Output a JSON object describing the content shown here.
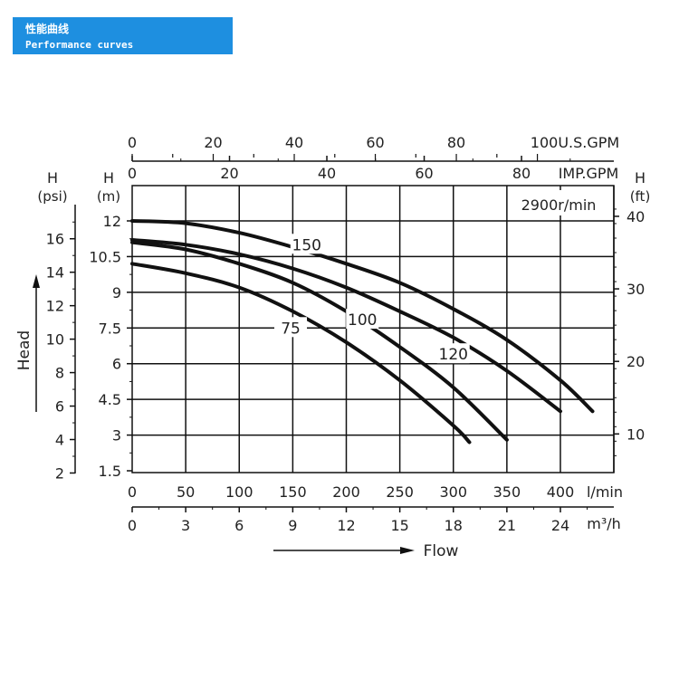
{
  "header": {
    "title_cn": "性能曲线",
    "title_en": "Performance curves"
  },
  "colors": {
    "banner": "#1e8fe0",
    "curve": "#111111",
    "grid": "#111111"
  },
  "chart_data": {
    "type": "line",
    "title": "",
    "speed_label": "2900r/min",
    "xlim": [
      0,
      450
    ],
    "ylim": [
      1.5,
      13.5
    ],
    "grid": true,
    "x_axes": [
      {
        "id": "lmin",
        "position": "bottom",
        "unit": "l/min",
        "ticks": [
          "0",
          "50",
          "100",
          "150",
          "200",
          "250",
          "300",
          "350",
          "400"
        ],
        "tick_values": [
          0,
          50,
          100,
          150,
          200,
          250,
          300,
          350,
          400
        ]
      },
      {
        "id": "m3h",
        "position": "bottom",
        "unit": "m³/h",
        "ticks": [
          "0",
          "3",
          "6",
          "9",
          "12",
          "15",
          "18",
          "21",
          "24"
        ],
        "tick_values": [
          0,
          3,
          6,
          9,
          12,
          15,
          18,
          21,
          24
        ]
      },
      {
        "id": "impgpm",
        "position": "top",
        "unit": "IMP.GPM",
        "ticks": [
          "0",
          "20",
          "40",
          "60",
          "80"
        ],
        "tick_values": [
          0,
          20,
          40,
          60,
          80
        ]
      },
      {
        "id": "usgpm",
        "position": "top",
        "unit": "100U.S.GPM",
        "ticks": [
          "0",
          "20",
          "40",
          "60",
          "80"
        ],
        "tick_values": [
          0,
          20,
          40,
          60,
          80
        ]
      }
    ],
    "y_axes": [
      {
        "id": "m",
        "position": "left",
        "label": "H\n(m)",
        "ticks": [
          "1.5",
          "3",
          "4.5",
          "6",
          "7.5",
          "9",
          "10.5",
          "12"
        ],
        "tick_values": [
          1.5,
          3,
          4.5,
          6,
          7.5,
          9,
          10.5,
          12
        ]
      },
      {
        "id": "psi",
        "position": "left-outer",
        "label": "H\n(psi)",
        "ticks": [
          "2",
          "4",
          "6",
          "8",
          "10",
          "12",
          "14",
          "16"
        ],
        "tick_values": [
          2,
          4,
          6,
          8,
          10,
          12,
          14,
          16
        ]
      },
      {
        "id": "ft",
        "position": "right",
        "label": "H\n(ft)",
        "ticks": [
          "10",
          "20",
          "30",
          "40"
        ],
        "tick_values": [
          10,
          20,
          30,
          40
        ]
      }
    ],
    "xlabel": "Flow",
    "ylabel": "Head",
    "series": [
      {
        "name": "75",
        "x": [
          0,
          50,
          100,
          150,
          200,
          250,
          300,
          315
        ],
        "y": [
          10.2,
          9.8,
          9.2,
          8.2,
          6.9,
          5.3,
          3.4,
          2.7
        ]
      },
      {
        "name": "100",
        "x": [
          0,
          50,
          100,
          150,
          200,
          250,
          300,
          350
        ],
        "y": [
          11.1,
          10.8,
          10.2,
          9.4,
          8.2,
          6.7,
          5.0,
          2.8
        ]
      },
      {
        "name": "120",
        "x": [
          0,
          50,
          100,
          150,
          200,
          250,
          300,
          350,
          400
        ],
        "y": [
          11.2,
          11.0,
          10.6,
          10.0,
          9.2,
          8.2,
          7.1,
          5.7,
          4.0
        ]
      },
      {
        "name": "150",
        "x": [
          0,
          50,
          100,
          150,
          200,
          250,
          300,
          350,
          400,
          430
        ],
        "y": [
          12.0,
          11.9,
          11.5,
          10.9,
          10.2,
          9.4,
          8.3,
          7.0,
          5.3,
          4.0
        ]
      }
    ],
    "series_labels": [
      {
        "name": "75",
        "x": 148,
        "y": 7.5
      },
      {
        "name": "100",
        "x": 215,
        "y": 7.85
      },
      {
        "name": "120",
        "x": 300,
        "y": 6.4
      },
      {
        "name": "150",
        "x": 163,
        "y": 11.0
      }
    ]
  }
}
